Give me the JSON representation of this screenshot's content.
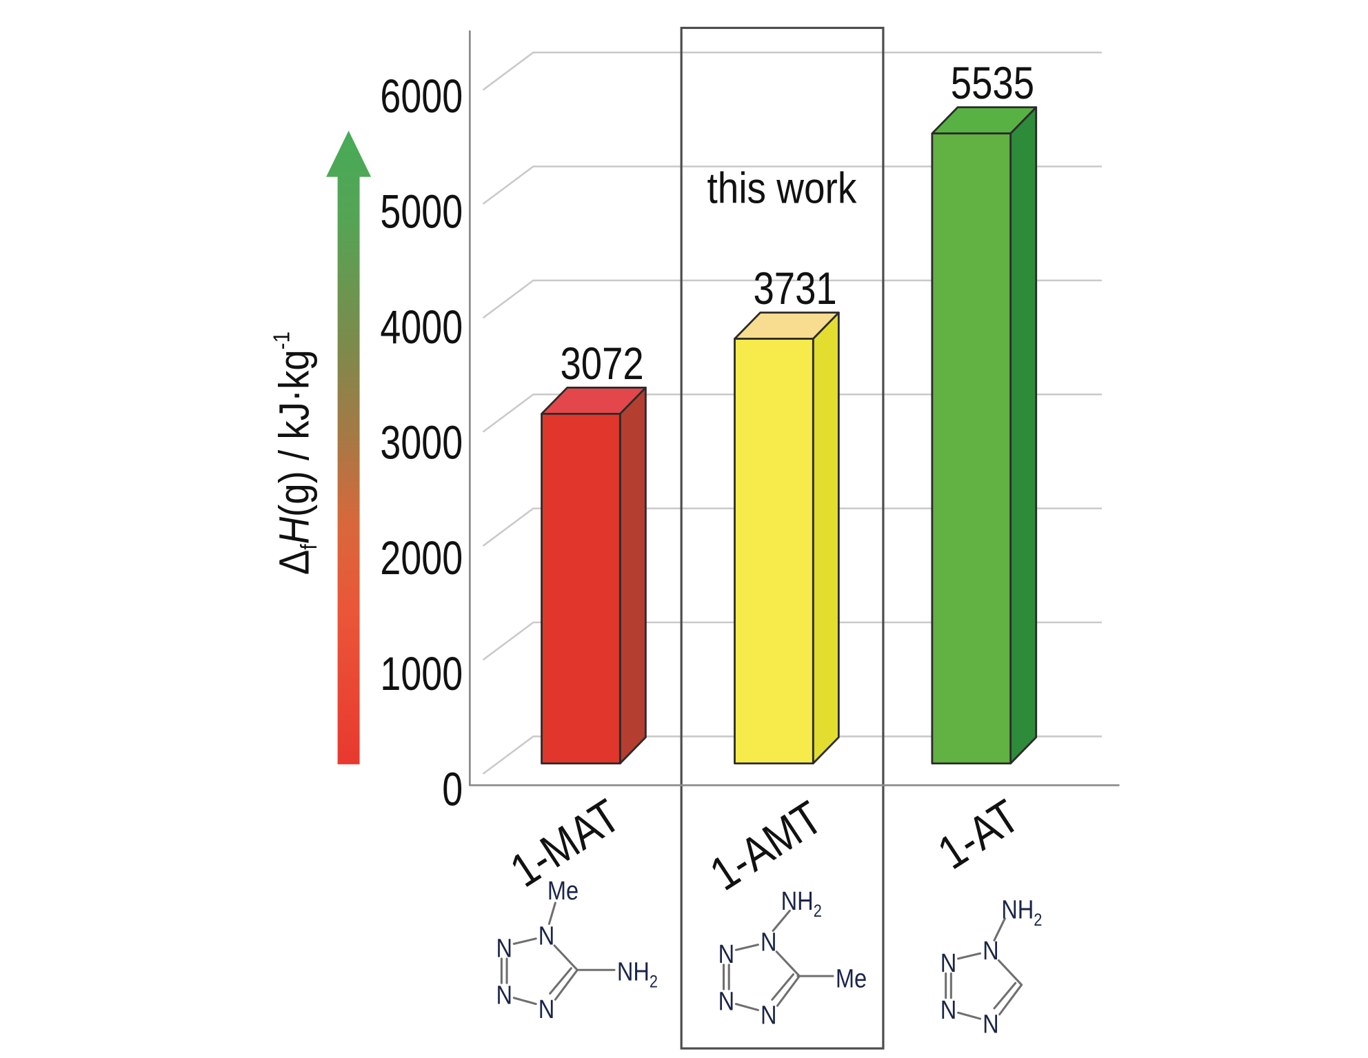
{
  "chart_data": {
    "type": "bar",
    "style": "3d",
    "categories": [
      "1-MAT",
      "1-AMT",
      "1-AT"
    ],
    "values": [
      3072,
      3731,
      5535
    ],
    "data_labels": [
      "3072",
      "3731",
      "5535"
    ],
    "xlabel": "",
    "ylabel": {
      "delta": "Δ",
      "sub": "f",
      "italic": "H",
      "rest": "(g) / kJ·kg",
      "sup": "-1"
    },
    "yticks": [
      0,
      1000,
      2000,
      3000,
      4000,
      5000,
      6000
    ],
    "ytick_labels": [
      "0",
      "1000",
      "2000",
      "3000",
      "4000",
      "5000",
      "6000"
    ],
    "ylim": [
      0,
      6500
    ],
    "grid": true,
    "annotations": [
      {
        "text": "this work",
        "category_index": 1
      }
    ],
    "bar_colors": [
      {
        "front": "#e1362b",
        "side": "#b43f30",
        "top": "#e3474b"
      },
      {
        "front": "#f7eb4b",
        "side": "#e3dd2f",
        "top": "#f8dc8f"
      },
      {
        "front": "#62b143",
        "side": "#2e8b3a",
        "top": "#58b243"
      }
    ]
  },
  "structures": [
    {
      "top": {
        "main": "Me"
      },
      "ring": [
        "N",
        "N",
        "N",
        "N"
      ],
      "side": {
        "main": "NH",
        "sub": "2"
      }
    },
    {
      "top": {
        "main": "NH",
        "sub": "2"
      },
      "ring": [
        "N",
        "N",
        "N",
        "N"
      ],
      "side": {
        "main": "Me"
      }
    },
    {
      "top": {
        "main": "NH",
        "sub": "2"
      },
      "ring": [
        "N",
        "N",
        "N",
        "N"
      ]
    }
  ],
  "arrow": {
    "gradient_colors": [
      "#e8392f",
      "#ea5638",
      "#d8683b",
      "#a57945",
      "#7d8a4c",
      "#55a455",
      "#47ab57"
    ]
  },
  "colors": {
    "axis": "#8c8c8c",
    "grid": "#c9c9c9",
    "box": "#4d4d4d",
    "text": "#111111",
    "bar_outline": "#2b2b2b",
    "atom_label": "#1b2548",
    "bond": "#6f6f6f"
  }
}
